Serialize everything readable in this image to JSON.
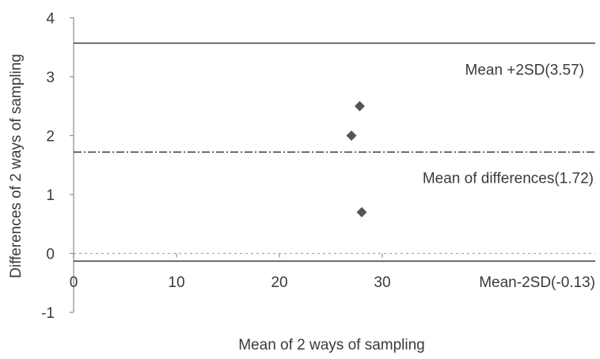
{
  "chart_data": {
    "type": "scatter",
    "title": "",
    "xlabel": "Mean of 2 ways of sampling",
    "ylabel": "Differences of  2 ways of sampling",
    "xlim": [
      0,
      50
    ],
    "ylim": [
      -1,
      4
    ],
    "x_ticks": [
      0,
      10,
      20,
      30
    ],
    "x_tick_labels": [
      "0",
      "10",
      "20",
      "30"
    ],
    "y_ticks": [
      -1,
      0,
      1,
      2,
      3,
      4
    ],
    "y_tick_labels": [
      "-1",
      "0",
      "1",
      "2",
      "3",
      "4"
    ],
    "grid": false,
    "points": [
      {
        "x": 27.0,
        "y": 2.0
      },
      {
        "x": 27.8,
        "y": 2.5
      },
      {
        "x": 28.0,
        "y": 0.7
      }
    ],
    "reference_lines": [
      {
        "id": "upper",
        "value": 3.57,
        "label": "Mean +2SD(3.57)",
        "style": "solid"
      },
      {
        "id": "mean",
        "value": 1.72,
        "label": "Mean of differences(1.72)",
        "style": "dash-dot"
      },
      {
        "id": "lower",
        "value": -0.13,
        "label": "Mean-2SD(-0.13)",
        "style": "solid"
      }
    ],
    "zero_line": {
      "value": 0,
      "style": "dotted"
    },
    "colors": {
      "axis": "#8c8c8c",
      "reference": "#2e2e2e",
      "marker": "#555555",
      "zero_line": "#a8a8a8",
      "text": "#3a3a3a"
    }
  }
}
